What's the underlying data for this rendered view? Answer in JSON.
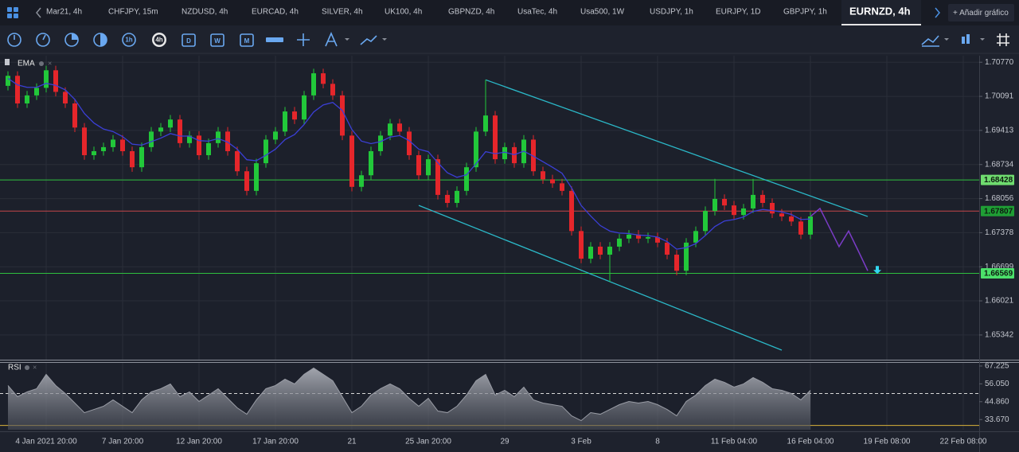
{
  "tabs": [
    {
      "label": "Mar21, 4h"
    },
    {
      "label": "CHFJPY, 15m"
    },
    {
      "label": "NZDUSD, 4h"
    },
    {
      "label": "EURCAD, 4h"
    },
    {
      "label": "SILVER, 4h"
    },
    {
      "label": "UK100, 4h"
    },
    {
      "label": "GBPNZD, 4h"
    },
    {
      "label": "UsaTec, 4h"
    },
    {
      "label": "Usa500, 1W"
    },
    {
      "label": "USDJPY, 1h"
    },
    {
      "label": "EURJPY, 1D"
    },
    {
      "label": "GBPJPY, 1h"
    },
    {
      "label": "EURNZD, 4h",
      "active": true
    }
  ],
  "add_chart": "+ Añadir gráfico",
  "toolbar": [
    "1h",
    "4h",
    "D",
    "W",
    "M"
  ],
  "chart_data": [
    {
      "type": "candlestick",
      "indicator": "EMA",
      "up_color": "#22c83a",
      "down_color": "#e5262b",
      "ema_color": "#3b3fd6",
      "projection_color": "#7a3cc6",
      "trendline_color": "#2bb8c8",
      "signal_color": "#33d6ef",
      "ylim": [
        1.6485,
        1.709
      ],
      "yticks": [
        {
          "value": 1.7077,
          "label": "1.70770"
        },
        1.70091,
        1.69413,
        1.68734,
        1.68056,
        1.67378,
        1.66699,
        1.66021,
        1.65342
      ],
      "categories": [
        null,
        null,
        null,
        null,
        "4 Jan 2021 20:00",
        null,
        null,
        null,
        null,
        null,
        null,
        null,
        "7 Jan 20:00",
        null,
        null,
        null,
        null,
        null,
        null,
        null,
        "12 Jan 20:00",
        null,
        null,
        null,
        null,
        null,
        null,
        null,
        "17 Jan 20:00",
        null,
        null,
        null,
        null,
        null,
        null,
        null,
        "21",
        null,
        null,
        null,
        null,
        null,
        null,
        null,
        "25 Jan 20:00",
        null,
        null,
        null,
        null,
        null,
        null,
        null,
        "29",
        null,
        null,
        null,
        null,
        null,
        null,
        null,
        "3 Feb",
        null,
        null,
        null,
        null,
        null,
        null,
        null,
        "8",
        null,
        null,
        null,
        null,
        null,
        null,
        null,
        "11 Feb 04:00",
        null,
        null,
        null,
        null,
        null,
        null,
        null,
        "16 Feb 04:00",
        null,
        null,
        null,
        null,
        null,
        null,
        null,
        "19 Feb 08:00",
        null,
        null,
        null,
        null,
        null,
        null,
        null,
        "22 Feb 08:00",
        null
      ],
      "open": [
        1.703,
        1.705,
        1.6995,
        1.7011,
        1.7026,
        1.7061,
        1.7018,
        1.6995,
        1.6947,
        1.6892,
        1.69,
        1.6908,
        1.6923,
        1.69,
        1.6868,
        1.6908,
        1.6939,
        1.6947,
        1.6963,
        1.6916,
        1.6931,
        1.6892,
        1.6916,
        1.6939,
        1.69,
        1.686,
        1.6821,
        1.6876,
        1.6923,
        1.6939,
        1.6979,
        1.6963,
        1.7011,
        1.7055,
        1.7034,
        1.7011,
        1.6931,
        1.6829,
        1.6852,
        1.69,
        1.6931,
        1.6955,
        1.6939,
        1.6892,
        1.6852,
        1.6884,
        1.6813,
        1.6797,
        1.6821,
        1.6868,
        1.6939,
        1.6971,
        1.6884,
        1.6908,
        1.6876,
        1.6923,
        1.686,
        1.6844,
        1.6836,
        1.6821,
        1.6741,
        1.6686,
        1.671,
        1.6694,
        1.671,
        1.6726,
        1.6734,
        1.6726,
        1.6729,
        1.6718,
        1.6694,
        1.6662,
        1.6718,
        1.6741,
        1.6781,
        1.6805,
        1.6792,
        1.6773,
        1.6786,
        1.6813,
        1.6797,
        1.6776,
        1.677,
        1.676,
        1.6734,
        null,
        null,
        null,
        null,
        null,
        null,
        null,
        null,
        null,
        null,
        null,
        null,
        null,
        null,
        null,
        null,
        null
      ],
      "high": [
        1.7059,
        1.7059,
        1.702,
        1.7035,
        1.707,
        1.707,
        1.7027,
        1.7004,
        1.6956,
        1.6909,
        1.6917,
        1.6932,
        1.6932,
        1.6909,
        1.6917,
        1.6948,
        1.6956,
        1.6972,
        1.6972,
        1.694,
        1.694,
        1.6925,
        1.6948,
        1.6948,
        1.6909,
        1.6869,
        1.6885,
        1.6932,
        1.6948,
        1.6988,
        1.6988,
        1.702,
        1.7064,
        1.7064,
        1.7043,
        1.702,
        1.694,
        1.6861,
        1.6909,
        1.694,
        1.6964,
        1.6964,
        1.6948,
        1.6901,
        1.6893,
        1.6893,
        1.6822,
        1.683,
        1.6877,
        1.6948,
        1.7042,
        1.698,
        1.6917,
        1.6917,
        1.6932,
        1.6932,
        1.6869,
        1.6853,
        1.6845,
        1.683,
        1.675,
        1.6719,
        1.6719,
        1.6719,
        1.6735,
        1.6743,
        1.6743,
        1.6738,
        1.6738,
        1.6727,
        1.6703,
        1.6727,
        1.675,
        1.679,
        1.6845,
        1.6814,
        1.6801,
        1.6795,
        1.6845,
        1.6822,
        1.6806,
        1.6785,
        1.6779,
        1.6769,
        1.6779,
        null,
        null,
        null,
        null,
        null,
        null,
        null,
        null,
        null,
        null,
        null,
        null,
        null,
        null,
        null,
        null,
        null
      ],
      "low": [
        1.7021,
        1.6986,
        1.6986,
        1.7002,
        1.7017,
        1.7009,
        1.6986,
        1.6938,
        1.6883,
        1.6883,
        1.6891,
        1.6899,
        1.6891,
        1.6859,
        1.6859,
        1.6899,
        1.693,
        1.6938,
        1.6907,
        1.6907,
        1.6883,
        1.6883,
        1.6907,
        1.6891,
        1.6851,
        1.6812,
        1.6812,
        1.6867,
        1.6914,
        1.693,
        1.6954,
        1.6954,
        1.7002,
        1.7025,
        1.7002,
        1.6922,
        1.682,
        1.682,
        1.6843,
        1.6891,
        1.6922,
        1.693,
        1.6883,
        1.6843,
        1.6843,
        1.6804,
        1.6788,
        1.6788,
        1.6812,
        1.6859,
        1.693,
        1.6875,
        1.6875,
        1.6867,
        1.6867,
        1.6851,
        1.6835,
        1.6827,
        1.6812,
        1.6732,
        1.6677,
        1.6677,
        1.6685,
        1.664,
        1.6701,
        1.6717,
        1.6717,
        1.6717,
        1.6709,
        1.6685,
        1.6653,
        1.6653,
        1.6709,
        1.6732,
        1.6772,
        1.6783,
        1.6764,
        1.6764,
        1.6777,
        1.6788,
        1.6767,
        1.6761,
        1.6751,
        1.6725,
        1.6725,
        null,
        null,
        null,
        null,
        null,
        null,
        null,
        null,
        null,
        null,
        null,
        null,
        null,
        null,
        null,
        null,
        null
      ],
      "close": [
        1.705,
        1.6995,
        1.7011,
        1.7026,
        1.7061,
        1.7018,
        1.6995,
        1.6947,
        1.6892,
        1.69,
        1.6908,
        1.6923,
        1.69,
        1.6868,
        1.6908,
        1.6939,
        1.6947,
        1.6963,
        1.6916,
        1.6931,
        1.6892,
        1.6916,
        1.6939,
        1.69,
        1.686,
        1.6821,
        1.6876,
        1.6923,
        1.6939,
        1.6979,
        1.6963,
        1.7011,
        1.7055,
        1.7034,
        1.7011,
        1.6931,
        1.6829,
        1.6852,
        1.69,
        1.6931,
        1.6955,
        1.6939,
        1.6892,
        1.6852,
        1.6884,
        1.6813,
        1.6797,
        1.6821,
        1.6868,
        1.6939,
        1.6971,
        1.6884,
        1.6908,
        1.6876,
        1.6923,
        1.686,
        1.6844,
        1.6836,
        1.6821,
        1.6741,
        1.6686,
        1.671,
        1.6694,
        1.671,
        1.6726,
        1.6734,
        1.6726,
        1.6729,
        1.6718,
        1.6694,
        1.6662,
        1.6718,
        1.6741,
        1.6781,
        1.6805,
        1.6792,
        1.6773,
        1.6786,
        1.6813,
        1.6797,
        1.6776,
        1.677,
        1.676,
        1.6734,
        1.677,
        null,
        null,
        null,
        null,
        null,
        null,
        null,
        null,
        null,
        null,
        null,
        null,
        null,
        null,
        null,
        null,
        null
      ],
      "ema": [
        1.7045,
        1.7032,
        1.7027,
        1.7027,
        1.7035,
        1.7031,
        1.7022,
        1.7003,
        1.6975,
        1.6956,
        1.6944,
        1.6939,
        1.6929,
        1.6914,
        1.6912,
        1.6919,
        1.6926,
        1.6935,
        1.693,
        1.693,
        1.6921,
        1.692,
        1.6925,
        1.6918,
        1.6904,
        1.6883,
        1.6881,
        1.6892,
        1.6904,
        1.6923,
        1.6933,
        1.6953,
        1.6978,
        1.6992,
        1.6997,
        1.6981,
        1.6943,
        1.692,
        1.6915,
        1.6919,
        1.6928,
        1.6931,
        1.6921,
        1.6904,
        1.6899,
        1.6877,
        1.6857,
        1.6848,
        1.6853,
        1.6875,
        1.6899,
        1.6895,
        1.6898,
        1.6893,
        1.69,
        1.689,
        1.6879,
        1.6868,
        1.6856,
        1.6827,
        1.6792,
        1.6771,
        1.6752,
        1.6741,
        1.6737,
        1.6736,
        1.6733,
        1.6732,
        1.6729,
        1.672,
        1.6705,
        1.6708,
        1.6716,
        1.6732,
        1.675,
        1.6761,
        1.6764,
        1.6769,
        1.678,
        1.6784,
        1.6782,
        1.6779,
        1.6774,
        1.6764,
        1.6765,
        null,
        null,
        null,
        null,
        null,
        null,
        null,
        null,
        null,
        null,
        null,
        null,
        null,
        null,
        null,
        null,
        null
      ],
      "projection": [
        null,
        null,
        null,
        null,
        null,
        null,
        null,
        null,
        null,
        null,
        null,
        null,
        null,
        null,
        null,
        null,
        null,
        null,
        null,
        null,
        null,
        null,
        null,
        null,
        null,
        null,
        null,
        null,
        null,
        null,
        null,
        null,
        null,
        null,
        null,
        null,
        null,
        null,
        null,
        null,
        null,
        null,
        null,
        null,
        null,
        null,
        null,
        null,
        null,
        null,
        null,
        null,
        null,
        null,
        null,
        null,
        null,
        null,
        null,
        null,
        null,
        null,
        null,
        null,
        null,
        null,
        null,
        null,
        null,
        null,
        null,
        null,
        null,
        null,
        null,
        null,
        null,
        null,
        null,
        null,
        null,
        null,
        null,
        null,
        1.677,
        1.6786,
        1.6748,
        1.671,
        1.6741,
        1.6702,
        1.6662,
        null,
        null,
        null,
        null,
        null,
        null,
        null,
        null,
        null,
        null,
        null
      ],
      "levels": [
        {
          "value": 1.68428,
          "color": "#2fbf3f",
          "tag_color": "#6fdc6f"
        },
        {
          "value": 1.67807,
          "color": "#c4464a",
          "tag_color": "#1f9e35"
        },
        {
          "value": 1.66569,
          "color": "#2fbf3f",
          "tag_color": "#4be06a"
        }
      ],
      "trendlines": [
        {
          "from": {
            "index": 50,
            "value": 1.7042
          },
          "to": {
            "index": 90,
            "value": 1.677
          }
        },
        {
          "from": {
            "index": 43,
            "value": 1.6792
          },
          "to": {
            "index": 81,
            "value": 1.6504
          }
        }
      ],
      "signal": {
        "index": 91,
        "value": 1.6662
      }
    },
    {
      "type": "area",
      "indicator": "RSI",
      "color": "#9a9da6",
      "ylim": [
        27.3,
        69.2
      ],
      "yticks": [
        67.225,
        {
          "value": 56.05,
          "label": "56.050"
        },
        {
          "value": 44.86,
          "label": "44.860"
        },
        {
          "value": 33.67,
          "label": "33.670"
        }
      ],
      "levels": [
        {
          "value": 50,
          "color": "#d8d8d8",
          "dashed": true
        },
        {
          "value": 30,
          "color": "#d9b23a",
          "dashed": false
        }
      ],
      "values": [
        55,
        48,
        51,
        53,
        62,
        55,
        50,
        44,
        38,
        40,
        42,
        46,
        42,
        38,
        46,
        51,
        53,
        56,
        48,
        51,
        45,
        49,
        53,
        47,
        41,
        37,
        46,
        53,
        55,
        59,
        56,
        62,
        66,
        62,
        58,
        48,
        38,
        42,
        49,
        53,
        56,
        53,
        47,
        42,
        47,
        39,
        38,
        42,
        49,
        58,
        62,
        49,
        52,
        48,
        54,
        46,
        44,
        43,
        42,
        36,
        33,
        38,
        37,
        40,
        43,
        45,
        44,
        45,
        43,
        40,
        36,
        45,
        49,
        55,
        59,
        57,
        54,
        56,
        60,
        57,
        53,
        52,
        50,
        46,
        52,
        null,
        null,
        null,
        null,
        null,
        null,
        null,
        null,
        null,
        null,
        null,
        null,
        null,
        null,
        null,
        null,
        null
      ]
    }
  ]
}
